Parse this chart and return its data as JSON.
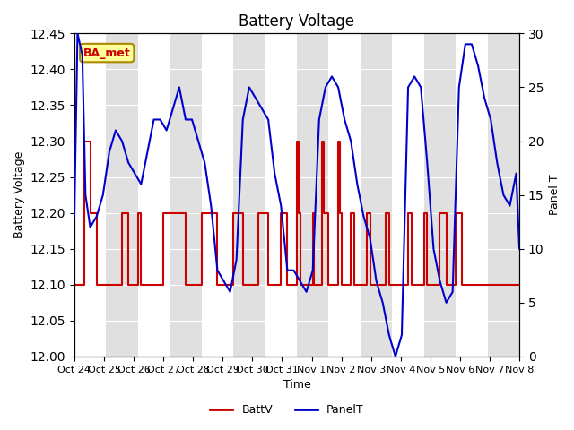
{
  "title": "Battery Voltage",
  "xlabel": "Time",
  "ylabel_left": "Battery Voltage",
  "ylabel_right": "Panel T",
  "ylim_left": [
    12.0,
    12.45
  ],
  "ylim_right": [
    0,
    30
  ],
  "background_color": "#ffffff",
  "plot_bg_color": "#f0f0f0",
  "band_color": "#e0e0e0",
  "annotation_text": "BA_met",
  "annotation_bg": "#ffff99",
  "annotation_border": "#aa8800",
  "annotation_text_color": "#cc0000",
  "x_tick_labels": [
    "Oct 24",
    "Oct 25",
    "Oct 26",
    "Oct 27",
    "Oct 28",
    "Oct 29",
    "Oct 30",
    "Oct 31",
    "Nov 1",
    "Nov 2",
    "Nov 3",
    "Nov 4",
    "Nov 5",
    "Nov 6",
    "Nov 7",
    "Nov 8"
  ],
  "battv_color": "#cc0000",
  "panelt_color": "#0000cc",
  "legend_battv": "BattV",
  "legend_panelt": "PanelT",
  "battv_data": [
    [
      0,
      12.1
    ],
    [
      0.3,
      12.1
    ],
    [
      0.3,
      12.3
    ],
    [
      0.5,
      12.3
    ],
    [
      0.5,
      12.2
    ],
    [
      0.7,
      12.2
    ],
    [
      0.7,
      12.1
    ],
    [
      1.5,
      12.1
    ],
    [
      1.5,
      12.2
    ],
    [
      1.7,
      12.2
    ],
    [
      1.7,
      12.1
    ],
    [
      2.0,
      12.1
    ],
    [
      2.0,
      12.2
    ],
    [
      2.1,
      12.2
    ],
    [
      2.1,
      12.1
    ],
    [
      2.8,
      12.1
    ],
    [
      2.8,
      12.2
    ],
    [
      3.5,
      12.2
    ],
    [
      3.5,
      12.1
    ],
    [
      4.0,
      12.1
    ],
    [
      4.0,
      12.2
    ],
    [
      4.5,
      12.2
    ],
    [
      4.5,
      12.1
    ],
    [
      5.0,
      12.1
    ],
    [
      5.0,
      12.2
    ],
    [
      5.3,
      12.2
    ],
    [
      5.3,
      12.1
    ],
    [
      5.8,
      12.1
    ],
    [
      5.8,
      12.2
    ],
    [
      6.1,
      12.2
    ],
    [
      6.1,
      12.1
    ],
    [
      6.5,
      12.1
    ],
    [
      6.5,
      12.2
    ],
    [
      6.7,
      12.2
    ],
    [
      6.7,
      12.1
    ],
    [
      7.0,
      12.1
    ],
    [
      7.0,
      12.3
    ],
    [
      7.05,
      12.3
    ],
    [
      7.05,
      12.2
    ],
    [
      7.1,
      12.2
    ],
    [
      7.1,
      12.1
    ],
    [
      7.5,
      12.1
    ],
    [
      7.5,
      12.2
    ],
    [
      7.55,
      12.2
    ],
    [
      7.55,
      12.1
    ],
    [
      7.8,
      12.1
    ],
    [
      7.8,
      12.3
    ],
    [
      7.85,
      12.3
    ],
    [
      7.85,
      12.2
    ],
    [
      8.0,
      12.2
    ],
    [
      8.0,
      12.1
    ],
    [
      8.3,
      12.1
    ],
    [
      8.3,
      12.3
    ],
    [
      8.35,
      12.3
    ],
    [
      8.35,
      12.2
    ],
    [
      8.4,
      12.2
    ],
    [
      8.4,
      12.1
    ],
    [
      8.7,
      12.1
    ],
    [
      8.7,
      12.2
    ],
    [
      8.8,
      12.2
    ],
    [
      8.8,
      12.1
    ],
    [
      9.2,
      12.1
    ],
    [
      9.2,
      12.2
    ],
    [
      9.3,
      12.2
    ],
    [
      9.3,
      12.1
    ],
    [
      9.8,
      12.1
    ],
    [
      9.8,
      12.2
    ],
    [
      9.9,
      12.2
    ],
    [
      9.9,
      12.1
    ],
    [
      10.5,
      12.1
    ],
    [
      10.5,
      12.2
    ],
    [
      10.6,
      12.2
    ],
    [
      10.6,
      12.1
    ],
    [
      11.0,
      12.1
    ],
    [
      11.0,
      12.2
    ],
    [
      11.1,
      12.2
    ],
    [
      11.1,
      12.1
    ],
    [
      11.5,
      12.1
    ],
    [
      11.5,
      12.2
    ],
    [
      11.7,
      12.2
    ],
    [
      11.7,
      12.1
    ],
    [
      12.0,
      12.1
    ],
    [
      12.0,
      12.2
    ],
    [
      12.2,
      12.2
    ],
    [
      12.2,
      12.1
    ],
    [
      14.0,
      12.1
    ]
  ],
  "panelt_data_x": [
    0.0,
    0.1,
    0.25,
    0.35,
    0.5,
    0.7,
    0.9,
    1.1,
    1.3,
    1.5,
    1.7,
    1.9,
    2.1,
    2.3,
    2.5,
    2.7,
    2.9,
    3.1,
    3.3,
    3.5,
    3.7,
    3.9,
    4.1,
    4.3,
    4.5,
    4.7,
    4.9,
    5.1,
    5.3,
    5.5,
    5.7,
    5.9,
    6.1,
    6.3,
    6.5,
    6.7,
    6.9,
    7.1,
    7.3,
    7.5,
    7.7,
    7.9,
    8.1,
    8.3,
    8.5,
    8.7,
    8.9,
    9.1,
    9.3,
    9.5,
    9.7,
    9.9,
    10.1,
    10.3,
    10.5,
    10.7,
    10.9,
    11.1,
    11.3,
    11.5,
    11.7,
    11.9,
    12.1,
    12.3,
    12.5,
    12.7,
    12.9,
    13.1,
    13.3,
    13.5,
    13.7,
    13.9,
    14.0
  ],
  "panelt_data_y": [
    13,
    30,
    28,
    15,
    12,
    13,
    15,
    19,
    21,
    20,
    18,
    17,
    16,
    19,
    22,
    22,
    21,
    23,
    25,
    22,
    22,
    20,
    18,
    14,
    8,
    7,
    6,
    9,
    22,
    25,
    24,
    23,
    22,
    17,
    14,
    8,
    8,
    7,
    6,
    8,
    22,
    25,
    26,
    25,
    22,
    20,
    16,
    13,
    11,
    7,
    5,
    2,
    0,
    2,
    25,
    26,
    25,
    18,
    10,
    7,
    5,
    6,
    25,
    29,
    29,
    27,
    24,
    22,
    18,
    15,
    14,
    17,
    10
  ]
}
